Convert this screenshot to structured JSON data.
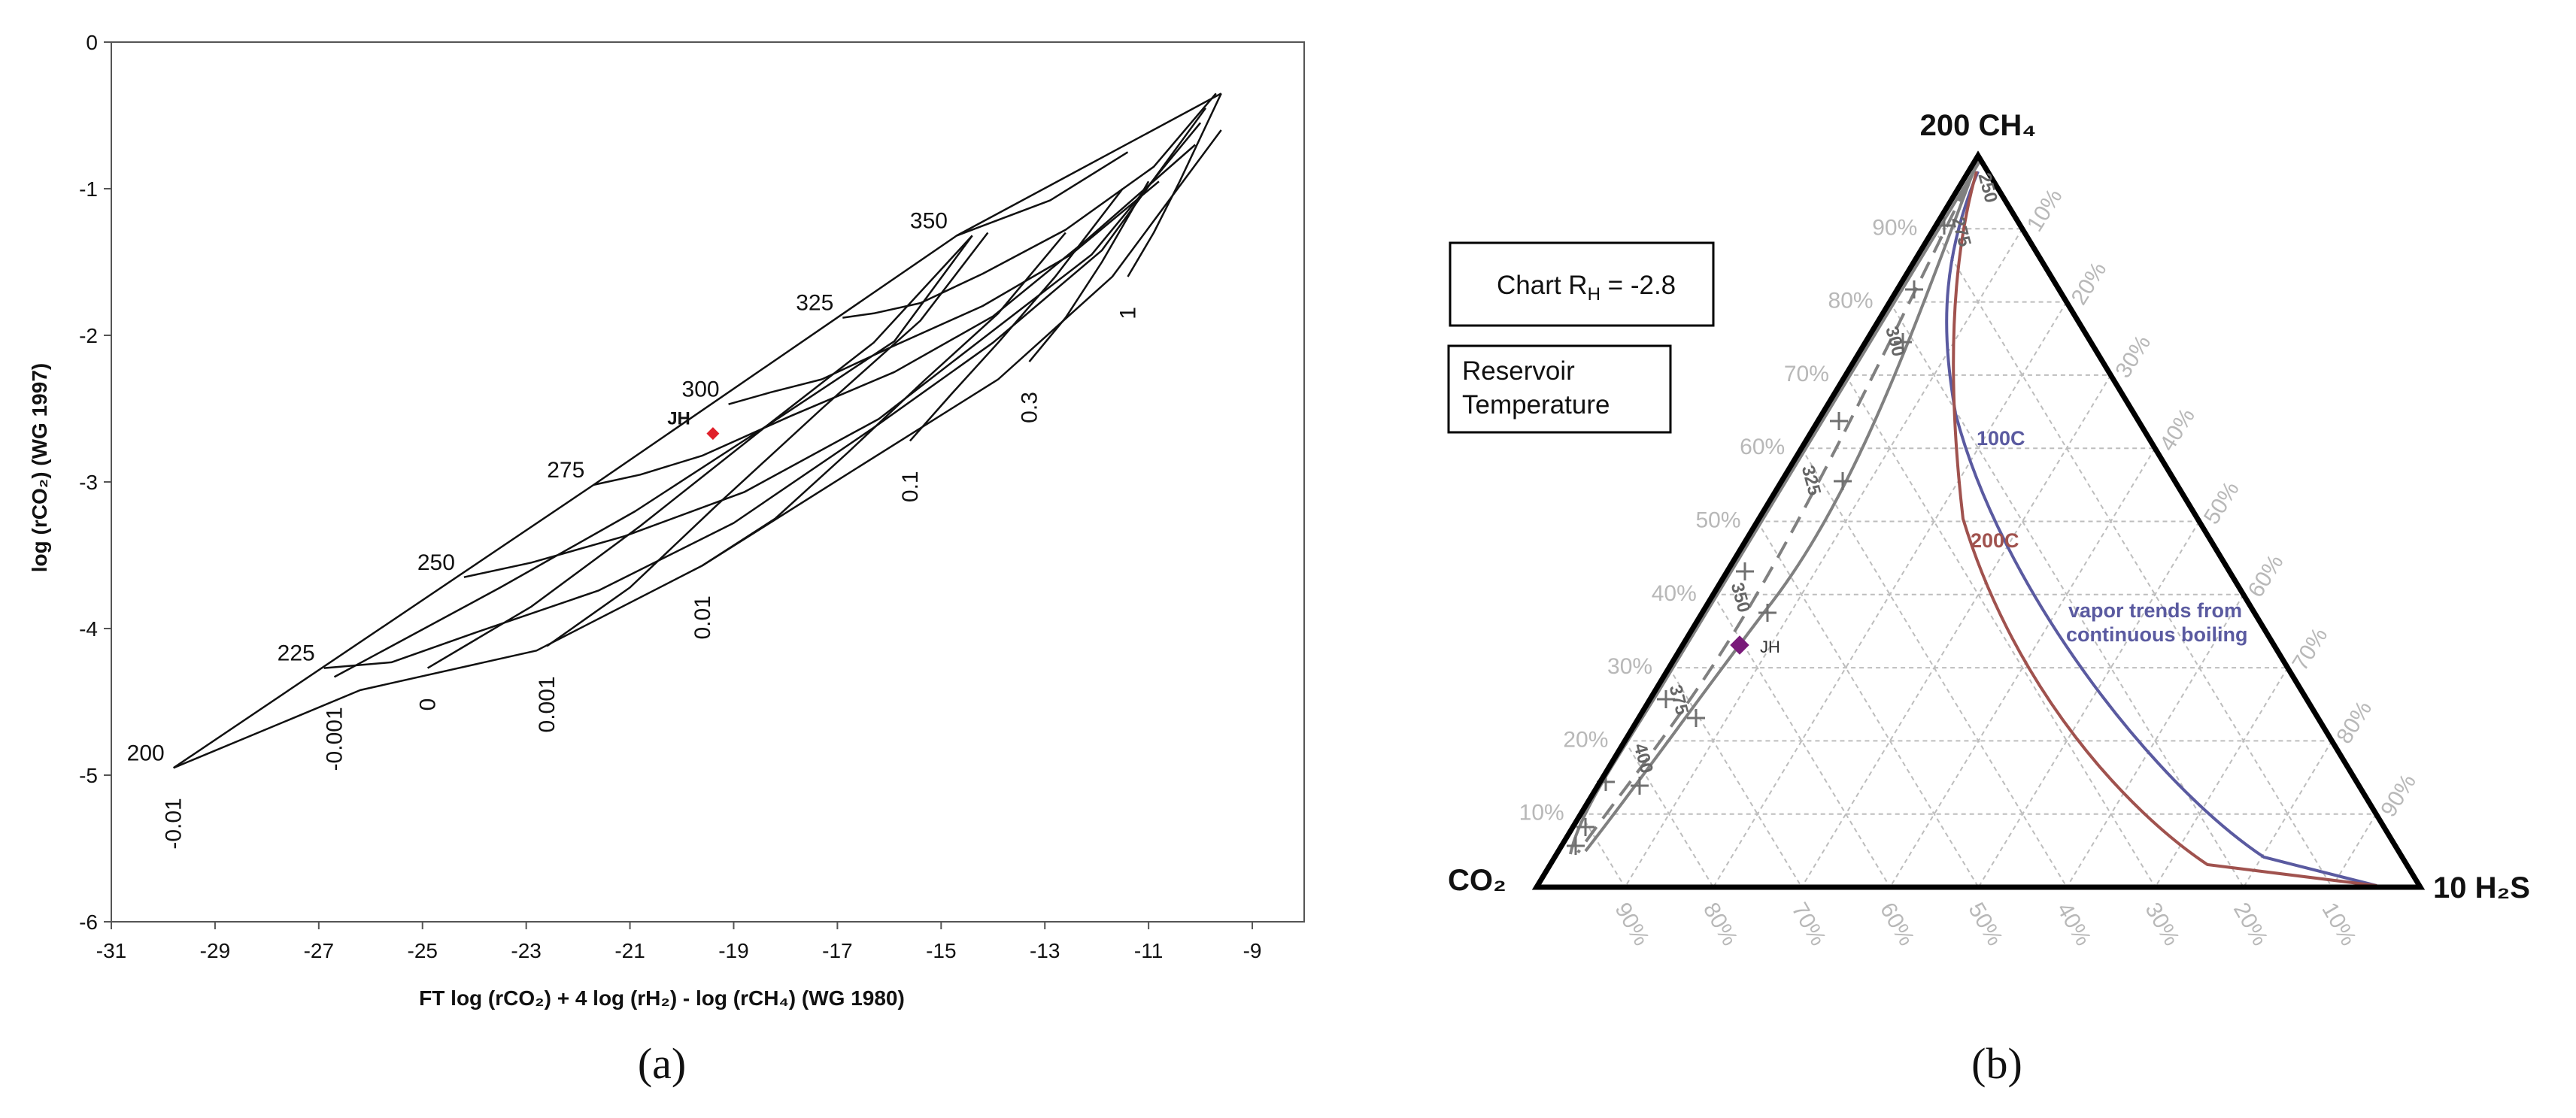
{
  "chart_data": [
    {
      "panel": "(a)",
      "type": "line",
      "xlabel": "FT  log (rCO₂) + 4 log (rH₂)  - log (rCH₄)  (WG 1980)",
      "ylabel": "log (rCO₂)  (WG 1997)",
      "xlim": [
        -31,
        -8
      ],
      "ylim": [
        -6,
        0
      ],
      "xticks": [
        -31,
        -29,
        -27,
        -25,
        -23,
        -21,
        -19,
        -17,
        -15,
        -13,
        -11,
        -9
      ],
      "yticks": [
        0,
        -1,
        -2,
        -3,
        -4,
        -5,
        -6
      ],
      "grid": false,
      "temperature_isotherms": [
        {
          "name": "200",
          "x": [
            -29.8,
            -26.2,
            -22.8,
            -19.6,
            -16.6,
            -13.9,
            -11.7,
            -9.6
          ],
          "y": [
            -4.95,
            -4.42,
            -4.15,
            -3.57,
            -2.9,
            -2.3,
            -1.6,
            -0.6
          ]
        },
        {
          "name": "225",
          "x": [
            -26.9,
            -25.6,
            -24.0,
            -21.6,
            -19.0,
            -16.3,
            -14.0,
            -11.9,
            -9.9
          ],
          "y": [
            -4.27,
            -4.23,
            -4.03,
            -3.74,
            -3.28,
            -2.63,
            -2.05,
            -1.42,
            -0.45
          ]
        },
        {
          "name": "250",
          "x": [
            -24.2,
            -22.9,
            -21.1,
            -18.8,
            -16.2,
            -14.3,
            -12.1,
            -10.0
          ],
          "y": [
            -3.65,
            -3.55,
            -3.37,
            -3.07,
            -2.57,
            -2.05,
            -1.45,
            -0.55
          ]
        },
        {
          "name": "275",
          "x": [
            -21.7,
            -20.8,
            -19.6,
            -17.9,
            -15.9,
            -14.0,
            -12.2,
            -10.1
          ],
          "y": [
            -3.02,
            -2.95,
            -2.82,
            -2.55,
            -2.25,
            -1.87,
            -1.35,
            -0.7
          ]
        },
        {
          "name": "300",
          "x": [
            -19.1,
            -18.3,
            -17.3,
            -15.9,
            -14.2,
            -12.5,
            -10.8
          ],
          "y": [
            -2.47,
            -2.39,
            -2.3,
            -2.07,
            -1.8,
            -1.45,
            -0.95
          ]
        },
        {
          "name": "325",
          "x": [
            -16.9,
            -16.3,
            -15.4,
            -14.2,
            -12.6,
            -10.9,
            -9.7
          ],
          "y": [
            -1.88,
            -1.85,
            -1.78,
            -1.58,
            -1.28,
            -0.85,
            -0.35
          ]
        },
        {
          "name": "350",
          "x": [
            -14.7,
            -14.4,
            -12.9,
            -11.4
          ],
          "y": [
            -1.32,
            -1.28,
            -1.08,
            -0.75
          ]
        }
      ],
      "ratio_lines": [
        {
          "name": "-0.01",
          "x": [
            -29.8,
            -21.7,
            -14.7,
            -9.6
          ],
          "y": [
            -4.95,
            -3.02,
            -1.32,
            -0.35
          ]
        },
        {
          "name": "-0.001",
          "x": [
            -26.7,
            -23.5,
            -20.9,
            -18.2,
            -15.9,
            -14.4
          ],
          "y": [
            -4.33,
            -3.72,
            -3.2,
            -2.58,
            -2.04,
            -1.32
          ]
        },
        {
          "name": "0",
          "x": [
            -24.9,
            -22.9,
            -20.8,
            -18.3,
            -16.3,
            -14.4
          ],
          "y": [
            -4.27,
            -3.85,
            -3.3,
            -2.6,
            -2.05,
            -1.32
          ]
        },
        {
          "name": "0.001",
          "x": [
            -22.6,
            -21.0,
            -19.3,
            -17.3,
            -15.4,
            -14.1
          ],
          "y": [
            -4.12,
            -3.72,
            -3.15,
            -2.5,
            -1.9,
            -1.3
          ]
        },
        {
          "name": "0.01",
          "x": [
            -19.6,
            -18.2,
            -16.8,
            -15.3,
            -13.9,
            -12.6
          ],
          "y": [
            -3.57,
            -3.25,
            -2.8,
            -2.3,
            -1.85,
            -1.3
          ]
        },
        {
          "name": "0.1",
          "x": [
            -15.6,
            -14.8,
            -13.9,
            -12.8,
            -11.5
          ],
          "y": [
            -2.72,
            -2.4,
            -2.05,
            -1.6,
            -1.0
          ]
        },
        {
          "name": "0.3",
          "x": [
            -13.3,
            -12.6,
            -11.9,
            -11.0
          ],
          "y": [
            -2.18,
            -1.88,
            -1.5,
            -0.95
          ]
        },
        {
          "name": "1",
          "x": [
            -11.4,
            -10.9,
            -10.4,
            -9.6
          ],
          "y": [
            -1.6,
            -1.3,
            -0.95,
            -0.35
          ]
        }
      ],
      "isotherm_labels": [
        "200",
        "225",
        "250",
        "275",
        "300",
        "325",
        "350"
      ],
      "ratio_labels": [
        "-0.01",
        "-0.001",
        "0",
        "0.001",
        "0.01",
        "0.1",
        "0.3",
        "1"
      ],
      "sample": {
        "name": "JH",
        "x": -19.4,
        "y": -2.67,
        "color": "#e0202a"
      }
    },
    {
      "panel": "(b)",
      "type": "ternary",
      "vertices": {
        "top": "200 CH₄",
        "left": "CO₂",
        "right": "10 H₂S"
      },
      "text_box_1": "Chart R",
      "text_box_1_sub": "H",
      "text_box_1_value": " = -2.8",
      "text_box_2_line1": "Reservoir",
      "text_box_2_line2": "Temperature",
      "left_edge_percent_labels": [
        "90%",
        "80%",
        "70%",
        "60%",
        "50%",
        "40%",
        "30%",
        "20%",
        "10%"
      ],
      "right_edge_percent_labels": [
        "10%",
        "20%",
        "30%",
        "40%",
        "50%",
        "60%",
        "70%",
        "80%",
        "90%"
      ],
      "bottom_edge_percent_labels": [
        "90%",
        "80%",
        "70%",
        "60%",
        "50%",
        "40%",
        "30%",
        "20%",
        "10%"
      ],
      "temperature_labels": [
        "250",
        "275",
        "300",
        "325",
        "350",
        "375",
        "400"
      ],
      "grid": true,
      "curves": [
        {
          "name": "100C",
          "color": "#5a5aa0"
        },
        {
          "name": "200C",
          "color": "#a0524e"
        }
      ],
      "annotation_line1": "vapor trends from",
      "annotation_line2": "continuous boiling",
      "annotation_color": "#5a5aa0",
      "sample": {
        "name": "JH",
        "color": "#7a1a7a"
      }
    }
  ],
  "captions": [
    "(a)",
    "(b)"
  ]
}
